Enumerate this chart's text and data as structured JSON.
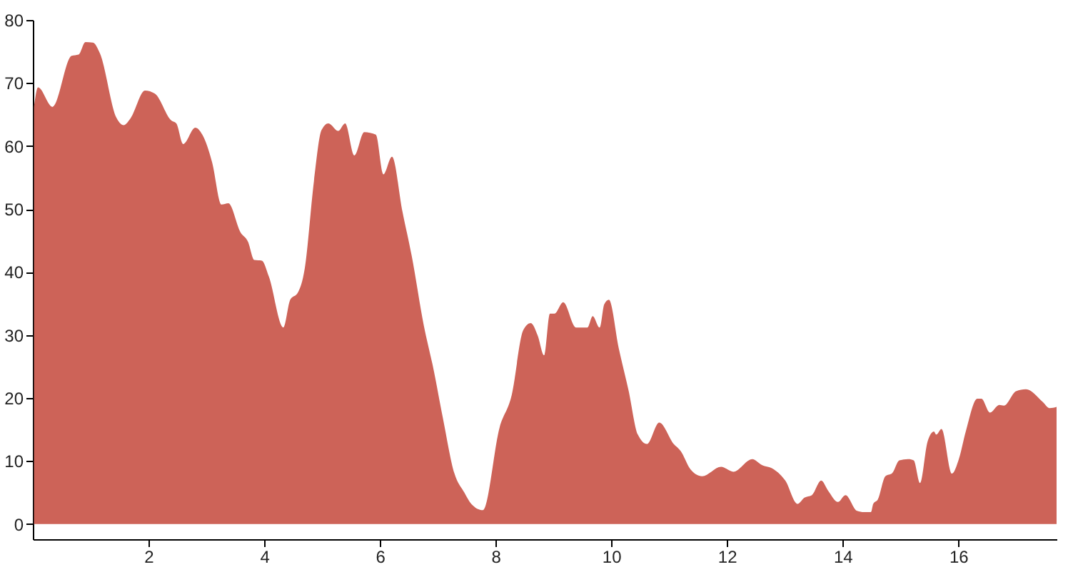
{
  "chart_data": {
    "type": "area",
    "xlim": [
      0,
      17.7
    ],
    "ylim": [
      -2.4,
      80
    ],
    "xticks": [
      2,
      4,
      6,
      8,
      10,
      12,
      14,
      16
    ],
    "yticks": [
      0,
      10,
      20,
      30,
      40,
      50,
      60,
      70,
      80
    ],
    "grid": false,
    "series": [
      {
        "color": "#cd6358",
        "x": [
          0.02,
          0.09,
          0.34,
          0.67,
          0.79,
          0.91,
          1.04,
          1.16,
          1.45,
          1.57,
          1.69,
          1.94,
          2.11,
          2.4,
          2.48,
          2.6,
          2.81,
          2.93,
          3.1,
          3.26,
          3.38,
          3.59,
          3.72,
          3.83,
          3.96,
          4.08,
          4.33,
          4.45,
          4.58,
          4.7,
          4.86,
          4.99,
          5.11,
          5.28,
          5.4,
          5.56,
          5.73,
          5.93,
          6.06,
          6.21,
          6.39,
          6.55,
          6.76,
          6.92,
          7.09,
          7.29,
          7.46,
          7.58,
          7.78,
          8.07,
          8.28,
          8.48,
          8.61,
          8.73,
          8.84,
          8.94,
          9.02,
          9.17,
          9.39,
          9.59,
          9.68,
          9.8,
          9.88,
          9.96,
          10.13,
          10.3,
          10.46,
          10.62,
          10.83,
          11.08,
          11.2,
          11.37,
          11.57,
          11.9,
          12.11,
          12.44,
          12.6,
          12.81,
          13.01,
          13.22,
          13.34,
          13.47,
          13.63,
          13.75,
          13.92,
          14.05,
          14.25,
          14.37,
          14.49,
          14.53,
          14.61,
          14.74,
          14.86,
          14.98,
          15.14,
          15.23,
          15.34,
          15.47,
          15.58,
          15.62,
          15.71,
          15.89,
          16.01,
          16.13,
          16.33,
          16.4,
          16.55,
          16.71,
          16.79,
          17.0,
          17.17,
          17.46,
          17.58,
          17.7
        ],
        "values": [
          66.2,
          69.3,
          66.2,
          74.3,
          74.5,
          76.5,
          76.4,
          74.7,
          64.4,
          63.3,
          64.4,
          68.8,
          68.3,
          64.0,
          63.6,
          60.3,
          62.9,
          61.8,
          57.4,
          50.7,
          50.9,
          46.3,
          44.8,
          41.9,
          41.8,
          39.3,
          31.2,
          35.6,
          36.7,
          40.5,
          54.4,
          62.5,
          63.6,
          62.4,
          63.6,
          58.5,
          62.2,
          61.8,
          55.5,
          58.3,
          49.6,
          42.6,
          31.5,
          24.9,
          16.8,
          8.0,
          5.0,
          3.2,
          2.2,
          15.3,
          20.5,
          30.8,
          31.9,
          29.9,
          26.8,
          33.4,
          33.4,
          35.2,
          31.2,
          31.2,
          33.0,
          31.2,
          34.9,
          35.6,
          27.9,
          21.2,
          14.2,
          12.7,
          16.1,
          12.7,
          11.6,
          8.7,
          7.6,
          9.1,
          8.3,
          10.3,
          9.4,
          8.7,
          6.9,
          3.2,
          4.2,
          4.6,
          6.9,
          5.3,
          3.5,
          4.6,
          2.1,
          1.9,
          1.9,
          3.2,
          3.9,
          7.6,
          8.1,
          10.1,
          10.3,
          10.1,
          6.5,
          13.1,
          14.7,
          14.2,
          15.1,
          8.0,
          10.3,
          14.7,
          19.9,
          19.9,
          17.7,
          18.9,
          18.8,
          21.1,
          21.4,
          19.4,
          18.4,
          18.6
        ]
      }
    ]
  }
}
